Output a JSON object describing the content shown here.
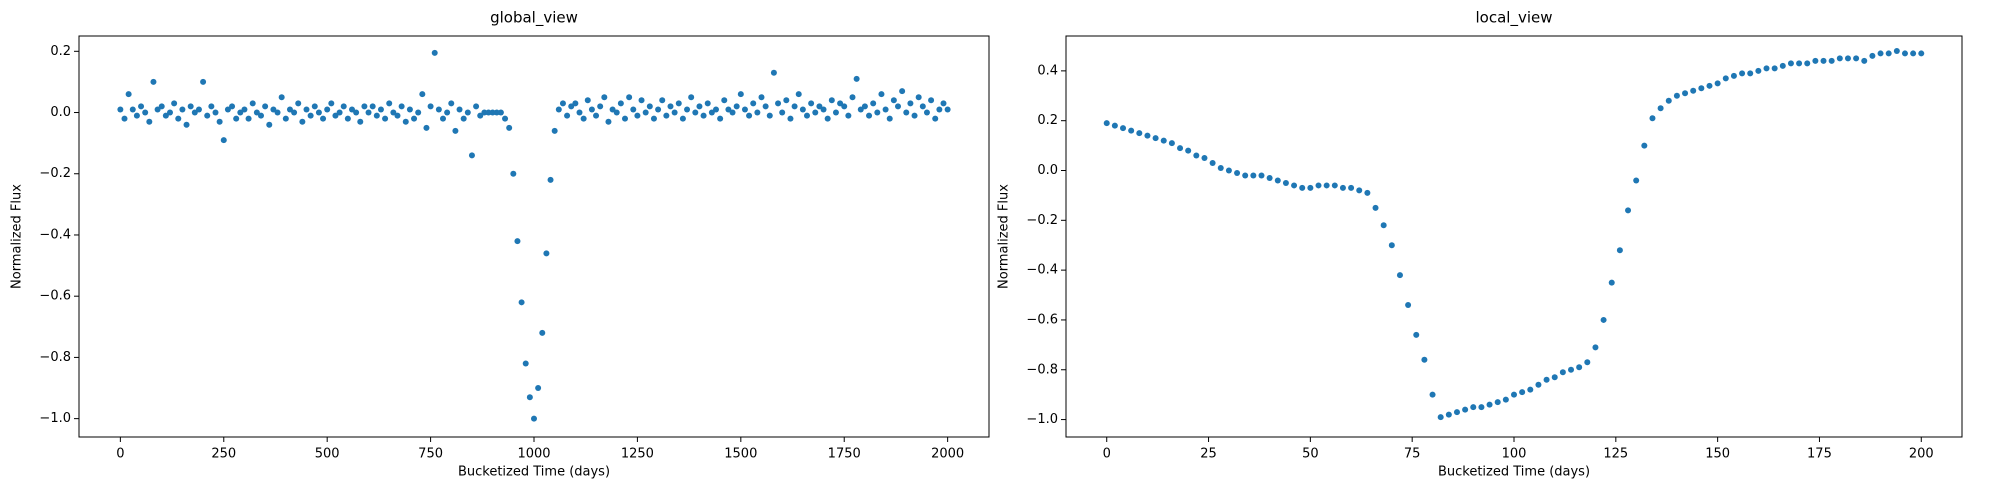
{
  "chart_data": [
    {
      "type": "scatter",
      "title": "global_view",
      "xlabel": "Bucketized Time (days)",
      "ylabel": "Normalized Flux",
      "color": "#1f77b4",
      "xlim": [
        -100,
        2100
      ],
      "ylim": [
        -1.06,
        0.25
      ],
      "xticks": [
        0,
        250,
        500,
        750,
        1000,
        1250,
        1500,
        1750,
        2000
      ],
      "yticks": [
        {
          "value": -1.0,
          "label": "−1.0"
        },
        {
          "value": -0.8,
          "label": "−0.8"
        },
        {
          "value": -0.6,
          "label": "−0.6"
        },
        {
          "value": -0.4,
          "label": "−0.4"
        },
        {
          "value": -0.2,
          "label": "−0.2"
        },
        {
          "value": 0,
          "label": "0.0"
        },
        {
          "value": 0.2,
          "label": "0.2"
        }
      ],
      "x": [
        0,
        10,
        20,
        30,
        40,
        50,
        60,
        70,
        80,
        90,
        100,
        110,
        120,
        130,
        140,
        150,
        160,
        170,
        180,
        190,
        200,
        210,
        220,
        230,
        240,
        250,
        260,
        270,
        280,
        290,
        300,
        310,
        320,
        330,
        340,
        350,
        360,
        370,
        380,
        390,
        400,
        410,
        420,
        430,
        440,
        450,
        460,
        470,
        480,
        490,
        500,
        510,
        520,
        530,
        540,
        550,
        560,
        570,
        580,
        590,
        600,
        610,
        620,
        630,
        640,
        650,
        660,
        670,
        680,
        690,
        700,
        710,
        720,
        730,
        740,
        750,
        760,
        770,
        780,
        790,
        800,
        810,
        820,
        830,
        840,
        850,
        860,
        870,
        880,
        890,
        900,
        910,
        920,
        930,
        940,
        950,
        960,
        970,
        980,
        990,
        1000,
        1010,
        1020,
        1030,
        1040,
        1050,
        1060,
        1070,
        1080,
        1090,
        1100,
        1110,
        1120,
        1130,
        1140,
        1150,
        1160,
        1170,
        1180,
        1190,
        1200,
        1210,
        1220,
        1230,
        1240,
        1250,
        1260,
        1270,
        1280,
        1290,
        1300,
        1310,
        1320,
        1330,
        1340,
        1350,
        1360,
        1370,
        1380,
        1390,
        1400,
        1410,
        1420,
        1430,
        1440,
        1450,
        1460,
        1470,
        1480,
        1490,
        1500,
        1510,
        1520,
        1530,
        1540,
        1550,
        1560,
        1570,
        1580,
        1590,
        1600,
        1610,
        1620,
        1630,
        1640,
        1650,
        1660,
        1670,
        1680,
        1690,
        1700,
        1710,
        1720,
        1730,
        1740,
        1750,
        1760,
        1770,
        1780,
        1790,
        1800,
        1810,
        1820,
        1830,
        1840,
        1850,
        1860,
        1870,
        1880,
        1890,
        1900,
        1910,
        1920,
        1930,
        1940,
        1950,
        1960,
        1970,
        1980,
        1990,
        2000
      ],
      "values": [
        0.01,
        -0.02,
        0.06,
        0.01,
        -0.01,
        0.02,
        0,
        -0.03,
        0.1,
        0.01,
        0.02,
        -0.01,
        0,
        0.03,
        -0.02,
        0.01,
        -0.04,
        0.02,
        0,
        0.01,
        0.1,
        -0.01,
        0.02,
        0,
        -0.03,
        -0.09,
        0.01,
        0.02,
        -0.02,
        0,
        0.01,
        -0.02,
        0.03,
        0,
        -0.01,
        0.02,
        -0.04,
        0.01,
        0,
        0.05,
        -0.02,
        0.01,
        0,
        0.03,
        -0.03,
        0.01,
        -0.01,
        0.02,
        0,
        -0.02,
        0.01,
        0.03,
        -0.01,
        0,
        0.02,
        -0.02,
        0.01,
        0,
        -0.03,
        0.02,
        0,
        0.02,
        -0.01,
        0.01,
        -0.02,
        0.03,
        0,
        -0.01,
        0.02,
        -0.03,
        0.01,
        -0.02,
        0,
        0.06,
        -0.05,
        0.02,
        0.195,
        0.01,
        -0.02,
        0,
        0.03,
        -0.06,
        0.01,
        -0.02,
        0,
        -0.14,
        0.02,
        -0.01,
        0,
        0,
        0,
        0,
        0,
        -0.02,
        -0.05,
        -0.2,
        -0.42,
        -0.62,
        -0.82,
        -0.93,
        -1.0,
        -0.9,
        -0.72,
        -0.46,
        -0.22,
        -0.06,
        0.01,
        0.03,
        -0.01,
        0.02,
        0.03,
        0,
        -0.02,
        0.04,
        0.01,
        -0.01,
        0.02,
        0.05,
        -0.03,
        0.01,
        0,
        0.03,
        -0.02,
        0.05,
        0.01,
        -0.01,
        0.04,
        0,
        0.02,
        -0.02,
        0.01,
        0.04,
        -0.01,
        0.02,
        0,
        0.03,
        -0.02,
        0.01,
        0.05,
        0,
        0.02,
        -0.01,
        0.03,
        0,
        0.01,
        -0.02,
        0.04,
        0.01,
        0,
        0.02,
        0.06,
        0.01,
        -0.01,
        0.03,
        0,
        0.05,
        0.02,
        -0.01,
        0.13,
        0.03,
        0,
        0.04,
        -0.02,
        0.02,
        0.06,
        0.01,
        -0.01,
        0.03,
        0,
        0.02,
        0.01,
        -0.02,
        0.04,
        0,
        0.03,
        0.02,
        -0.01,
        0.05,
        0.11,
        0.01,
        0.02,
        -0.01,
        0.03,
        0,
        0.06,
        0.01,
        -0.02,
        0.04,
        0.02,
        0.07,
        0,
        0.03,
        -0.01,
        0.05,
        0.02,
        0,
        0.04,
        -0.02,
        0.01,
        0.03,
        0.01
      ]
    },
    {
      "type": "scatter",
      "title": "local_view",
      "xlabel": "Bucketized Time (days)",
      "ylabel": "Normalized Flux",
      "color": "#1f77b4",
      "xlim": [
        -10,
        210
      ],
      "ylim": [
        -1.07,
        0.54
      ],
      "xticks": [
        0,
        25,
        50,
        75,
        100,
        125,
        150,
        175,
        200
      ],
      "yticks": [
        {
          "value": -1.0,
          "label": "−1.0"
        },
        {
          "value": -0.8,
          "label": "−0.8"
        },
        {
          "value": -0.6,
          "label": "−0.6"
        },
        {
          "value": -0.4,
          "label": "−0.4"
        },
        {
          "value": -0.2,
          "label": "−0.2"
        },
        {
          "value": 0,
          "label": "0.0"
        },
        {
          "value": 0.2,
          "label": "0.2"
        },
        {
          "value": 0.4,
          "label": "0.4"
        }
      ],
      "x": [
        0,
        2,
        4,
        6,
        8,
        10,
        12,
        14,
        16,
        18,
        20,
        22,
        24,
        26,
        28,
        30,
        32,
        34,
        36,
        38,
        40,
        42,
        44,
        46,
        48,
        50,
        52,
        54,
        56,
        58,
        60,
        62,
        64,
        66,
        68,
        70,
        72,
        74,
        76,
        78,
        80,
        82,
        84,
        86,
        88,
        90,
        92,
        94,
        96,
        98,
        100,
        102,
        104,
        106,
        108,
        110,
        112,
        114,
        116,
        118,
        120,
        122,
        124,
        126,
        128,
        130,
        132,
        134,
        136,
        138,
        140,
        142,
        144,
        146,
        148,
        150,
        152,
        154,
        156,
        158,
        160,
        162,
        164,
        166,
        168,
        170,
        172,
        174,
        176,
        178,
        180,
        182,
        184,
        186,
        188,
        190,
        192,
        194,
        196,
        198,
        200
      ],
      "values": [
        0.19,
        0.18,
        0.17,
        0.16,
        0.15,
        0.14,
        0.13,
        0.12,
        0.11,
        0.09,
        0.08,
        0.06,
        0.05,
        0.03,
        0.01,
        0.0,
        -0.01,
        -0.02,
        -0.02,
        -0.02,
        -0.03,
        -0.04,
        -0.05,
        -0.06,
        -0.07,
        -0.07,
        -0.06,
        -0.06,
        -0.06,
        -0.07,
        -0.07,
        -0.08,
        -0.09,
        -0.15,
        -0.22,
        -0.3,
        -0.42,
        -0.54,
        -0.66,
        -0.76,
        -0.9,
        -0.99,
        -0.98,
        -0.97,
        -0.96,
        -0.95,
        -0.95,
        -0.94,
        -0.93,
        -0.92,
        -0.9,
        -0.89,
        -0.88,
        -0.86,
        -0.84,
        -0.83,
        -0.81,
        -0.8,
        -0.79,
        -0.77,
        -0.71,
        -0.6,
        -0.45,
        -0.32,
        -0.16,
        -0.04,
        0.1,
        0.21,
        0.25,
        0.28,
        0.3,
        0.31,
        0.32,
        0.33,
        0.34,
        0.35,
        0.37,
        0.38,
        0.39,
        0.39,
        0.4,
        0.41,
        0.41,
        0.42,
        0.43,
        0.43,
        0.43,
        0.44,
        0.44,
        0.44,
        0.45,
        0.45,
        0.45,
        0.44,
        0.46,
        0.47,
        0.47,
        0.48,
        0.47,
        0.47,
        0.47
      ]
    }
  ]
}
